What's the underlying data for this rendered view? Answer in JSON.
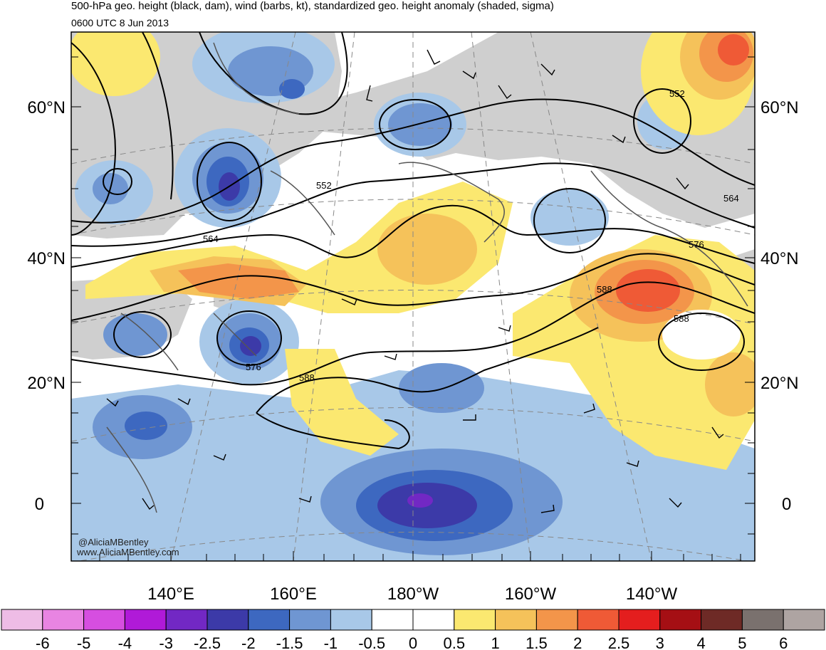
{
  "title": "500-hPa geo. height (black, dam), wind (barbs, kt), standardized geo. height anomaly (shaded, sigma)",
  "valid_time": "0600 UTC 8 Jun 2013",
  "lat_labels": [
    "60°N",
    "40°N",
    "20°N",
    "0"
  ],
  "lon_labels": [
    "140°E",
    "160°E",
    "180°W",
    "160°W",
    "140°W"
  ],
  "contour_labels": [
    "552",
    "552",
    "564",
    "564",
    "576",
    "576",
    "588",
    "588",
    "588"
  ],
  "colorbar": {
    "ticks": [
      "-6",
      "-5",
      "-4",
      "-3",
      "-2.5",
      "-2",
      "-1.5",
      "-1",
      "-0.5",
      "0",
      "0.5",
      "1",
      "1.5",
      "2",
      "2.5",
      "3",
      "4",
      "5",
      "6"
    ],
    "colors": [
      "#eebce6",
      "#e884e2",
      "#d64ee0",
      "#b01ad8",
      "#7228c4",
      "#3c3aa8",
      "#3d68c0",
      "#6f96d2",
      "#a8c8e8",
      "#ffffff",
      "#ffffff",
      "#fbe870",
      "#f5c25a",
      "#f3954a",
      "#ef5a36",
      "#e41e1e",
      "#a50f14",
      "#6e2a26",
      "#7a716e",
      "#aea4a2"
    ]
  },
  "credit": [
    "@AliciaMBentley",
    "www.AliciaMBentley.com"
  ]
}
